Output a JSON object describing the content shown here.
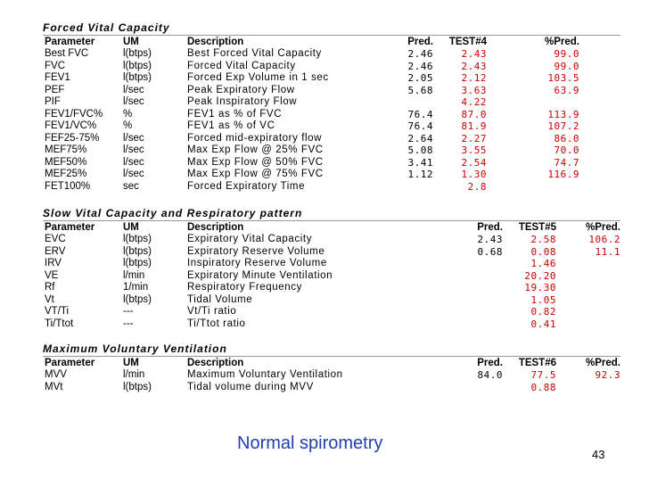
{
  "sections": [
    {
      "title": "Forced Vital Capacity",
      "headers": {
        "param": "Parameter",
        "um": "UM",
        "desc": "Description",
        "pred": "Pred.",
        "test": "TEST#4",
        "pct": "%Pred."
      },
      "rows": [
        {
          "param": "Best FVC",
          "um": "l(btps)",
          "desc": "Best Forced Vital Capacity",
          "pred": "2.46",
          "test": "2.43",
          "pct": "99.0"
        },
        {
          "param": "FVC",
          "um": "l(btps)",
          "desc": "Forced Vital Capacity",
          "pred": "2.46",
          "test": "2.43",
          "pct": "99.0"
        },
        {
          "param": "FEV1",
          "um": "l(btps)",
          "desc": "Forced Exp Volume in 1 sec",
          "pred": "2.05",
          "test": "2.12",
          "pct": "103.5"
        },
        {
          "param": "PEF",
          "um": "l/sec",
          "desc": "Peak Expiratory Flow",
          "pred": "5.68",
          "test": "3.63",
          "pct": "63.9"
        },
        {
          "param": "PIF",
          "um": "l/sec",
          "desc": "Peak Inspiratory Flow",
          "pred": "",
          "test": "4.22",
          "pct": ""
        },
        {
          "param": "FEV1/FVC%",
          "um": "%",
          "desc": "FEV1 as % of FVC",
          "pred": "76.4",
          "test": "87.0",
          "pct": "113.9"
        },
        {
          "param": "FEV1/VC%",
          "um": "%",
          "desc": "FEV1 as % of VC",
          "pred": "76.4",
          "test": "81.9",
          "pct": "107.2"
        },
        {
          "param": "FEF25-75%",
          "um": "l/sec",
          "desc": "Forced mid-expiratory flow",
          "pred": "2.64",
          "test": "2.27",
          "pct": "86.0"
        },
        {
          "param": "MEF75%",
          "um": "l/sec",
          "desc": "Max Exp Flow @ 25% FVC",
          "pred": "5.08",
          "test": "3.55",
          "pct": "70.0"
        },
        {
          "param": "MEF50%",
          "um": "l/sec",
          "desc": "Max Exp Flow @ 50% FVC",
          "pred": "3.41",
          "test": "2.54",
          "pct": "74.7"
        },
        {
          "param": "MEF25%",
          "um": "l/sec",
          "desc": "Max Exp Flow @ 75% FVC",
          "pred": "1.12",
          "test": "1.30",
          "pct": "116.9"
        },
        {
          "param": "FET100%",
          "um": "sec",
          "desc": "Forced Expiratory Time",
          "pred": "",
          "test": "2.8",
          "pct": ""
        }
      ]
    },
    {
      "title": "Slow Vital Capacity and Respiratory pattern",
      "headers": {
        "param": "Parameter",
        "um": "UM",
        "desc": "Description",
        "pred": "Pred.",
        "test": "TEST#5",
        "pct": "%Pred."
      },
      "rows": [
        {
          "param": "EVC",
          "um": "l(btps)",
          "desc": "Expiratory Vital Capacity",
          "pred": "2.43",
          "test": "2.58",
          "pct": "106.2"
        },
        {
          "param": "ERV",
          "um": "l(btps)",
          "desc": "Expiratory Reserve Volume",
          "pred": "0.68",
          "test": "0.08",
          "pct": "11.1"
        },
        {
          "param": "IRV",
          "um": "l(btps)",
          "desc": "Inspiratory Reserve Volume",
          "pred": "",
          "test": "1.46",
          "pct": ""
        },
        {
          "param": "VE",
          "um": "l/min",
          "desc": "Expiratory Minute Ventilation",
          "pred": "",
          "test": "20.20",
          "pct": ""
        },
        {
          "param": "Rf",
          "um": "1/min",
          "desc": "Respiratory Frequency",
          "pred": "",
          "test": "19.30",
          "pct": ""
        },
        {
          "param": "Vt",
          "um": "l(btps)",
          "desc": "Tidal Volume",
          "pred": "",
          "test": "1.05",
          "pct": ""
        },
        {
          "param": "VT/Ti",
          "um": "---",
          "desc": "Vt/Ti ratio",
          "pred": "",
          "test": "0.82",
          "pct": ""
        },
        {
          "param": "Ti/Ttot",
          "um": "---",
          "desc": "Ti/Ttot ratio",
          "pred": "",
          "test": "0.41",
          "pct": ""
        }
      ]
    },
    {
      "title": "Maximum Voluntary Ventilation",
      "headers": {
        "param": "Parameter",
        "um": "UM",
        "desc": "Description",
        "pred": "Pred.",
        "test": "TEST#6",
        "pct": "%Pred."
      },
      "rows": [
        {
          "param": "MVV",
          "um": "l/min",
          "desc": "Maximum Voluntary Ventilation",
          "pred": "84.0",
          "test": "77.5",
          "pct": "92.3"
        },
        {
          "param": "MVt",
          "um": "l(btps)",
          "desc": "Tidal volume during MVV",
          "pred": "",
          "test": "0.88",
          "pct": ""
        }
      ]
    }
  ],
  "caption": "Normal spirometry",
  "page_number": "43",
  "colors": {
    "test_value": "#cc0000",
    "caption": "#1f3fae"
  }
}
